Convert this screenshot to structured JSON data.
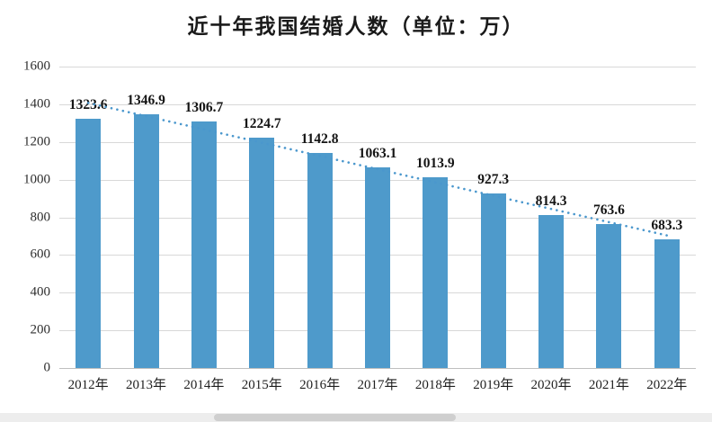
{
  "chart_data": {
    "type": "bar",
    "title": "近十年我国结婚人数（单位：万）",
    "categories": [
      "2012年",
      "2013年",
      "2014年",
      "2015年",
      "2016年",
      "2017年",
      "2018年",
      "2019年",
      "2020年",
      "2021年",
      "2022年"
    ],
    "values": [
      1323.6,
      1346.9,
      1306.7,
      1224.7,
      1142.8,
      1063.1,
      1013.9,
      927.3,
      814.3,
      763.6,
      683.3
    ],
    "value_labels": [
      "1323.6",
      "1346.9",
      "1306.7",
      "1224.7",
      "1142.8",
      "1063.1",
      "1013.9",
      "927.3",
      "814.3",
      "763.6",
      "683.3"
    ],
    "xlabel": "",
    "ylabel": "",
    "ylim": [
      0,
      1600
    ],
    "y_ticks": [
      0,
      200,
      400,
      600,
      800,
      1000,
      1200,
      1400,
      1600
    ],
    "grid": true,
    "legend": "none",
    "bar_color": "#4e9acb",
    "trendline": {
      "style": "dotted",
      "color": "#4a97cd"
    }
  }
}
